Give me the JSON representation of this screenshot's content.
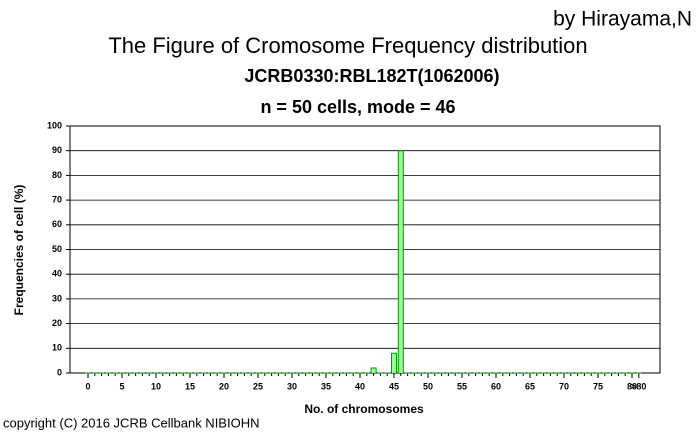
{
  "chart_data": {
    "type": "bar",
    "credit": "by Hirayama,N",
    "title": "The Figure of Cromosome Frequency distribution",
    "subtitle": "JCRB0330:RBL182T(1062006)",
    "summary": "n = 50 cells,  mode = 46",
    "x_label": "No. of chromosomes",
    "y_label": "Frequencies of cell (%)",
    "footer": "copyright (C) 2016 JCRB Cellbank NIBIOHN",
    "categories": [
      "0",
      null,
      null,
      null,
      null,
      "5",
      null,
      null,
      null,
      null,
      "10",
      null,
      null,
      null,
      null,
      "15",
      null,
      null,
      null,
      null,
      "20",
      null,
      null,
      null,
      null,
      "25",
      null,
      null,
      null,
      null,
      "30",
      null,
      null,
      null,
      null,
      "35",
      null,
      null,
      null,
      null,
      "40",
      null,
      null,
      null,
      null,
      "45",
      null,
      null,
      null,
      null,
      "50",
      null,
      null,
      null,
      null,
      "55",
      null,
      null,
      null,
      null,
      "60",
      null,
      null,
      null,
      null,
      "65",
      null,
      null,
      null,
      null,
      "70",
      null,
      null,
      null,
      null,
      "75",
      null,
      null,
      null,
      null,
      "80",
      ">80"
    ],
    "values": [
      0,
      0,
      0,
      0,
      0,
      0,
      0,
      0,
      0,
      0,
      0,
      0,
      0,
      0,
      0,
      0,
      0,
      0,
      0,
      0,
      0,
      0,
      0,
      0,
      0,
      0,
      0,
      0,
      0,
      0,
      0,
      0,
      0,
      0,
      0,
      0,
      0,
      0,
      0,
      0,
      0,
      0,
      2,
      0,
      0,
      8,
      90,
      0,
      0,
      0,
      0,
      0,
      0,
      0,
      0,
      0,
      0,
      0,
      0,
      0,
      0,
      0,
      0,
      0,
      0,
      0,
      0,
      0,
      0,
      0,
      0,
      0,
      0,
      0,
      0,
      0,
      0,
      0,
      0,
      0,
      0,
      0
    ],
    "color": "#99ff99",
    "edge_color": "#009900",
    "ylim": [
      0,
      100
    ],
    "yticks": [
      0,
      10,
      20,
      30,
      40,
      50,
      60,
      70,
      80,
      90,
      100
    ],
    "grid": true
  }
}
